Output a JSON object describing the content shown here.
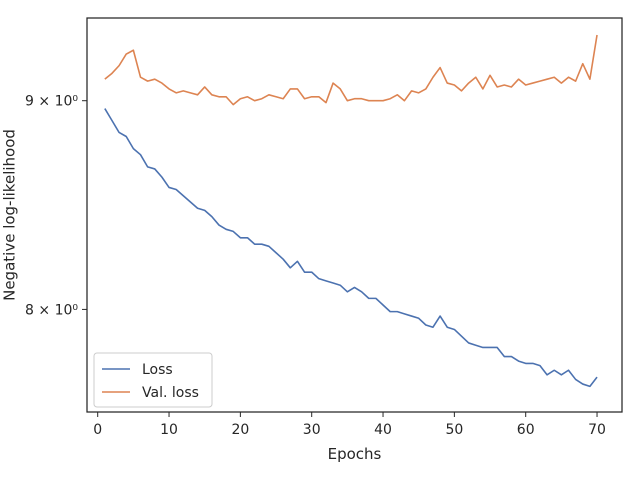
{
  "chart_data": {
    "type": "line",
    "title": "",
    "xlabel": "Epochs",
    "ylabel": "Negative log-likelihood",
    "yscale": "log",
    "xlim": [
      -1.5,
      73.5
    ],
    "ylim": [
      7.55,
      9.43
    ],
    "grid": false,
    "legend_position": "lower-left",
    "x_ticks": [
      {
        "value": 0,
        "label": "0"
      },
      {
        "value": 10,
        "label": "10"
      },
      {
        "value": 20,
        "label": "20"
      },
      {
        "value": 30,
        "label": "30"
      },
      {
        "value": 40,
        "label": "40"
      },
      {
        "value": 50,
        "label": "50"
      },
      {
        "value": 60,
        "label": "60"
      },
      {
        "value": 70,
        "label": "70"
      }
    ],
    "y_ticks": [
      {
        "value": 8,
        "label": "8 × 10⁰"
      },
      {
        "value": 9,
        "label": "9 × 10⁰"
      }
    ],
    "x": [
      1,
      2,
      3,
      4,
      5,
      6,
      7,
      8,
      9,
      10,
      11,
      12,
      13,
      14,
      15,
      16,
      17,
      18,
      19,
      20,
      21,
      22,
      23,
      24,
      25,
      26,
      27,
      28,
      29,
      30,
      31,
      32,
      33,
      34,
      35,
      36,
      37,
      38,
      39,
      40,
      41,
      42,
      43,
      44,
      45,
      46,
      47,
      48,
      49,
      50,
      51,
      52,
      53,
      54,
      55,
      56,
      57,
      58,
      59,
      60,
      61,
      62,
      63,
      64,
      65,
      66,
      67,
      68,
      69,
      70
    ],
    "series": [
      {
        "name": "Loss",
        "color": "#4c72b0",
        "values": [
          8.96,
          8.9,
          8.84,
          8.82,
          8.76,
          8.73,
          8.67,
          8.66,
          8.62,
          8.57,
          8.56,
          8.53,
          8.5,
          8.47,
          8.46,
          8.43,
          8.39,
          8.37,
          8.36,
          8.33,
          8.33,
          8.3,
          8.3,
          8.29,
          8.26,
          8.23,
          8.19,
          8.22,
          8.17,
          8.17,
          8.14,
          8.13,
          8.12,
          8.11,
          8.08,
          8.1,
          8.08,
          8.05,
          8.05,
          8.02,
          7.99,
          7.99,
          7.98,
          7.97,
          7.96,
          7.93,
          7.92,
          7.97,
          7.92,
          7.91,
          7.88,
          7.85,
          7.84,
          7.83,
          7.83,
          7.83,
          7.79,
          7.79,
          7.77,
          7.76,
          7.76,
          7.75,
          7.71,
          7.73,
          7.71,
          7.73,
          7.69,
          7.67,
          7.66,
          7.7
        ]
      },
      {
        "name": "Val. loss",
        "color": "#dd8452",
        "values": [
          9.11,
          9.14,
          9.18,
          9.24,
          9.26,
          9.12,
          9.1,
          9.11,
          9.09,
          9.06,
          9.04,
          9.05,
          9.04,
          9.03,
          9.07,
          9.03,
          9.02,
          9.02,
          8.98,
          9.01,
          9.02,
          9.0,
          9.01,
          9.03,
          9.02,
          9.01,
          9.06,
          9.06,
          9.01,
          9.02,
          9.02,
          8.99,
          9.09,
          9.06,
          9.0,
          9.01,
          9.01,
          9.0,
          9.0,
          9.0,
          9.01,
          9.03,
          9.0,
          9.05,
          9.04,
          9.06,
          9.12,
          9.17,
          9.09,
          9.08,
          9.05,
          9.09,
          9.12,
          9.06,
          9.13,
          9.07,
          9.08,
          9.07,
          9.11,
          9.08,
          9.09,
          9.1,
          9.11,
          9.12,
          9.09,
          9.12,
          9.1,
          9.19,
          9.11,
          9.34
        ]
      }
    ]
  }
}
